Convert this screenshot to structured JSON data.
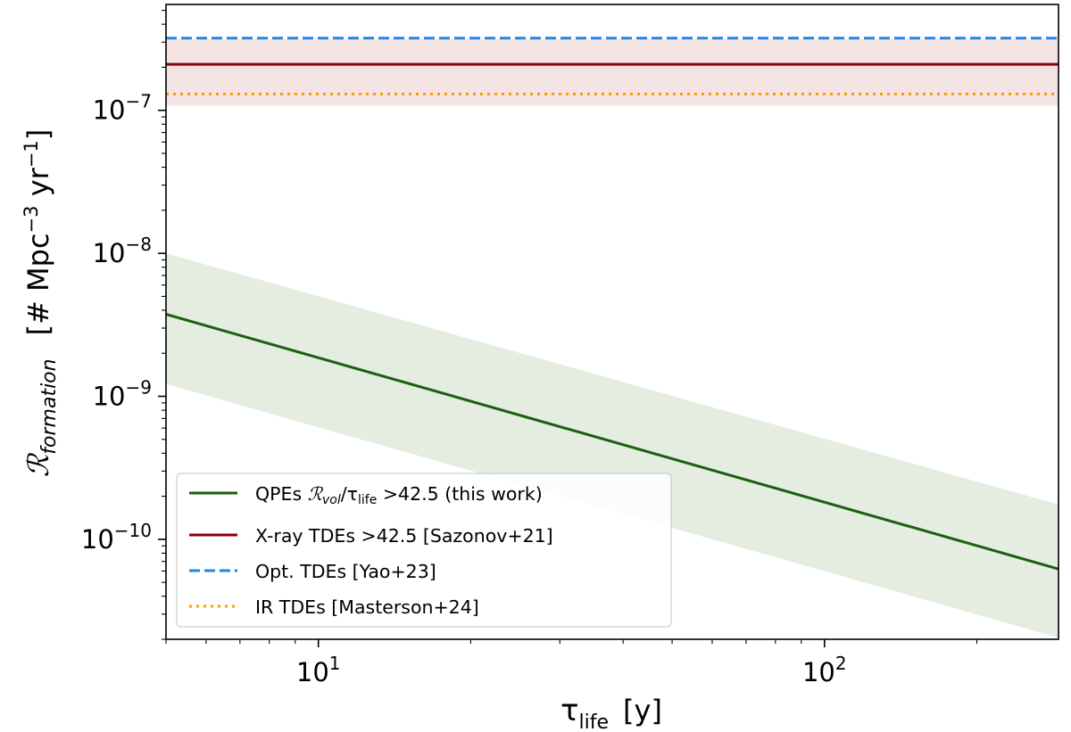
{
  "chart_data": {
    "type": "line",
    "xscale": "log",
    "yscale": "log",
    "xlim": [
      5,
      290
    ],
    "ylim": [
      2e-11,
      5.5e-07
    ],
    "xlabel": {
      "main": "τ",
      "sub": "life",
      "unit": "[y]"
    },
    "ylabel": {
      "main": "ℛ",
      "sub": "formation",
      "unit": "[# Mpc",
      "sup1": "−3",
      "mid": " yr",
      "sup2": "−1",
      "end": "]"
    },
    "x_ticks": [
      {
        "value": 10,
        "base": "10",
        "exp": "1"
      },
      {
        "value": 100,
        "base": "10",
        "exp": "2"
      }
    ],
    "y_ticks": [
      {
        "value": 1e-10,
        "base": "10",
        "exp": "−10"
      },
      {
        "value": 1e-09,
        "base": "10",
        "exp": "−9"
      },
      {
        "value": 1e-08,
        "base": "10",
        "exp": "−8"
      },
      {
        "value": 1e-07,
        "base": "10",
        "exp": "−7"
      }
    ],
    "series": [
      {
        "name": "QPEs ℛvol/τlife >42.5 (this work)",
        "kind": "power_law",
        "x": [
          5,
          290
        ],
        "y": [
          3.75e-09,
          6.2e-11
        ],
        "band_low": [
          1.22e-09,
          2.05e-11
        ],
        "band_high": [
          1e-08,
          1.75e-10
        ],
        "color": "#1e5e10",
        "band_color": "#e4ede0",
        "dash": "solid"
      },
      {
        "name": "X-ray TDEs >42.5 [Sazonov+21]",
        "kind": "constant",
        "y": 2.1e-07,
        "band_low": 1.08e-07,
        "band_high": 3.15e-07,
        "color": "#8b0000",
        "band_color": "#f4e3e3",
        "dash": "solid"
      },
      {
        "name": "Opt. TDEs [Yao+23]",
        "kind": "constant",
        "y": 3.2e-07,
        "color": "#1e88e5",
        "dash": "dashed"
      },
      {
        "name": "IR TDEs [Masterson+24]",
        "kind": "constant",
        "y": 1.3e-07,
        "color": "#ff9800",
        "dash": "dotted"
      }
    ],
    "legend": {
      "placement": "lower-left",
      "entries": [
        {
          "prefix": "QPEs ",
          "math": "ℛ",
          "math_sub": "vol",
          "mid": "/τ",
          "mid_sub": "life",
          "suffix": " >42.5 (this work)"
        },
        {
          "text": "X-ray TDEs >42.5 [Sazonov+21]"
        },
        {
          "text": "Opt. TDEs [Yao+23]"
        },
        {
          "text": "IR TDEs [Masterson+24]"
        }
      ]
    }
  }
}
